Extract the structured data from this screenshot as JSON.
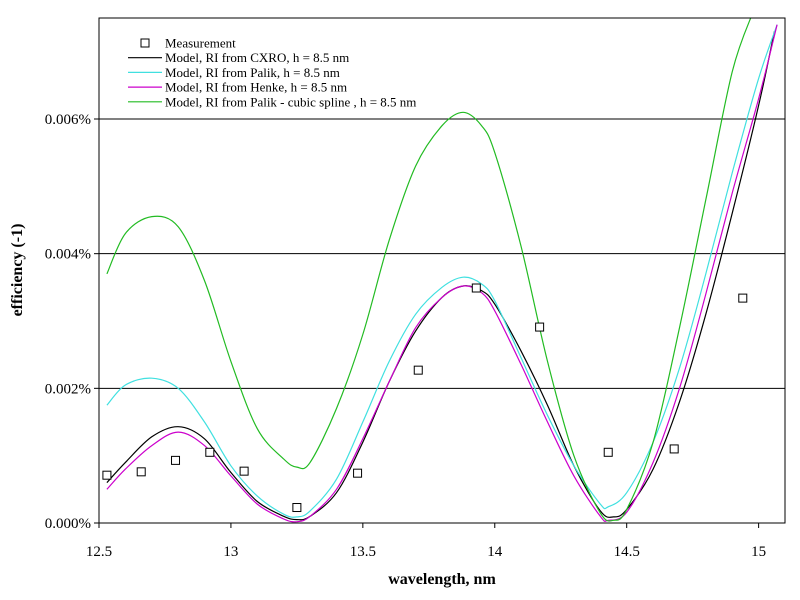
{
  "chart_data": {
    "type": "line",
    "xlabel": "wavelength, nm",
    "ylabel": "efficiency (-1)",
    "xlim": [
      12.5,
      15.1
    ],
    "ylim": [
      0,
      0.0075
    ],
    "x_ticks": [
      12.5,
      13,
      13.5,
      14,
      14.5,
      15
    ],
    "x_tick_labels": [
      "12.5",
      "13",
      "13.5",
      "14",
      "14.5",
      "15"
    ],
    "y_ticks": [
      0,
      0.002,
      0.004,
      0.006
    ],
    "y_tick_labels": [
      "0.000%",
      "0.002%",
      "0.004%",
      "0.006%"
    ],
    "grid": "horizontal",
    "legend_position": "top-left",
    "series": [
      {
        "name": "Measurement",
        "kind": "markers",
        "color": "#000000",
        "x": [
          12.53,
          12.66,
          12.79,
          12.92,
          13.05,
          13.25,
          13.48,
          13.71,
          13.93,
          14.17,
          14.43,
          14.68,
          14.94
        ],
        "y": [
          0.00071,
          0.00076,
          0.00093,
          0.00105,
          0.00077,
          0.00023,
          0.00074,
          0.00227,
          0.00349,
          0.00291,
          0.00105,
          0.0011,
          0.00334
        ]
      },
      {
        "name": "Model, RI from CXRO, h = 8.5 nm",
        "kind": "line",
        "color": "#000000",
        "x": [
          12.53,
          12.6,
          12.7,
          12.8,
          12.9,
          13.0,
          13.1,
          13.2,
          13.25,
          13.3,
          13.4,
          13.5,
          13.6,
          13.7,
          13.8,
          13.88,
          13.95,
          14.0,
          14.1,
          14.2,
          14.3,
          14.4,
          14.45,
          14.5,
          14.6,
          14.7,
          14.8,
          14.9,
          15.0,
          15.06
        ],
        "y": [
          0.0006,
          0.0009,
          0.00128,
          0.00143,
          0.00125,
          0.00075,
          0.00032,
          0.0001,
          5e-05,
          0.0001,
          0.00045,
          0.0012,
          0.0021,
          0.00285,
          0.00335,
          0.00352,
          0.00345,
          0.00325,
          0.00255,
          0.00175,
          0.00085,
          0.00018,
          9e-05,
          0.0002,
          0.0008,
          0.0018,
          0.0031,
          0.0046,
          0.0062,
          0.0073
        ]
      },
      {
        "name": "Model, RI from Palik, h = 8.5 nm",
        "kind": "line",
        "color": "#40e0e0",
        "x": [
          12.53,
          12.6,
          12.7,
          12.8,
          12.9,
          13.0,
          13.1,
          13.2,
          13.25,
          13.3,
          13.4,
          13.5,
          13.6,
          13.7,
          13.8,
          13.88,
          13.95,
          14.0,
          14.1,
          14.2,
          14.3,
          14.4,
          14.43,
          14.5,
          14.6,
          14.7,
          14.8,
          14.9,
          15.0,
          15.07
        ],
        "y": [
          0.00175,
          0.00205,
          0.00215,
          0.002,
          0.0015,
          0.00085,
          0.0004,
          0.00013,
          9e-05,
          0.00018,
          0.00065,
          0.0015,
          0.0024,
          0.0031,
          0.0035,
          0.00365,
          0.00355,
          0.0033,
          0.00245,
          0.0016,
          0.00085,
          0.00028,
          0.00024,
          0.00045,
          0.0012,
          0.0023,
          0.0037,
          0.0052,
          0.0066,
          0.0074
        ]
      },
      {
        "name": "Model, RI from Henke, h = 8.5 nm",
        "kind": "line",
        "color": "#cc00cc",
        "x": [
          12.53,
          12.6,
          12.7,
          12.8,
          12.9,
          13.0,
          13.1,
          13.2,
          13.25,
          13.3,
          13.4,
          13.5,
          13.6,
          13.7,
          13.8,
          13.88,
          13.95,
          14.0,
          14.1,
          14.2,
          14.3,
          14.4,
          14.43,
          14.5,
          14.6,
          14.7,
          14.8,
          14.9,
          15.0,
          15.07
        ],
        "y": [
          0.0005,
          0.0008,
          0.00115,
          0.00135,
          0.00115,
          0.0007,
          0.00028,
          6e-05,
          2e-05,
          0.0001,
          0.0005,
          0.00125,
          0.0021,
          0.0029,
          0.00335,
          0.00352,
          0.00342,
          0.00315,
          0.00235,
          0.0015,
          0.0007,
          0.0001,
          4e-05,
          0.00016,
          0.0009,
          0.002,
          0.0034,
          0.0049,
          0.0063,
          0.0074
        ]
      },
      {
        "name": "Model, RI from Palik - cubic spline , h = 8.5 nm",
        "kind": "line",
        "color": "#22bb22",
        "x": [
          12.53,
          12.6,
          12.7,
          12.8,
          12.9,
          13.0,
          13.1,
          13.2,
          13.25,
          13.3,
          13.4,
          13.5,
          13.6,
          13.7,
          13.8,
          13.88,
          13.95,
          14.0,
          14.1,
          14.2,
          14.3,
          14.4,
          14.45,
          14.5,
          14.6,
          14.7,
          14.8,
          14.9,
          14.98
        ],
        "y": [
          0.0037,
          0.0043,
          0.00455,
          0.0044,
          0.0036,
          0.0024,
          0.0014,
          0.00095,
          0.00083,
          0.0009,
          0.0017,
          0.0028,
          0.0042,
          0.0053,
          0.0059,
          0.0061,
          0.0059,
          0.0055,
          0.0041,
          0.0024,
          0.001,
          0.00015,
          4e-05,
          0.0002,
          0.0012,
          0.0029,
          0.0048,
          0.0067,
          0.0076
        ]
      }
    ]
  }
}
